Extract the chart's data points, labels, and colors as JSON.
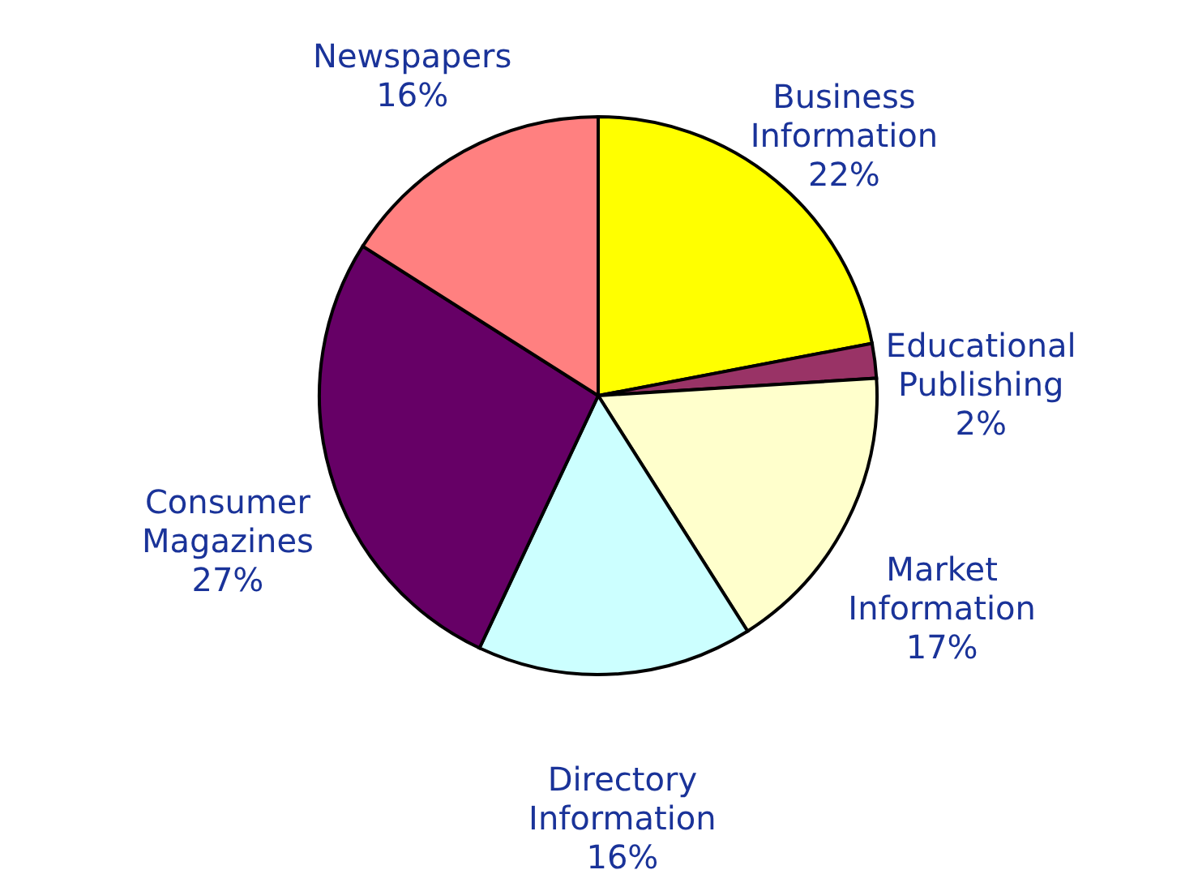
{
  "chart_data": {
    "type": "pie",
    "categories": [
      "Business Information",
      "Educational Publishing",
      "Market Information",
      "Directory Information",
      "Consumer Magazines",
      "Newspapers"
    ],
    "values": [
      22,
      2,
      17,
      16,
      27,
      16
    ],
    "value_labels": [
      "22%",
      "2%",
      "17%",
      "16%",
      "27%",
      "16%"
    ],
    "colors": [
      "#ffff00",
      "#993366",
      "#ffffcc",
      "#ccffff",
      "#660066",
      "#ff8080"
    ]
  }
}
